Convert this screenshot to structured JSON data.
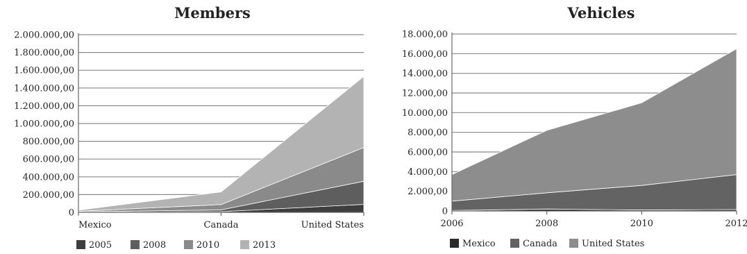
{
  "chart_data": [
    {
      "type": "area",
      "stacked": true,
      "title": "Members",
      "categories": [
        "Mexico",
        "Canada",
        "United States"
      ],
      "ylim": [
        0,
        2000000
      ],
      "yticks": [
        "0",
        "200.000,00",
        "400.000,00",
        "600.000,00",
        "800.000,00",
        "1.000.000,00",
        "1.200.000,00",
        "1.400.000,00",
        "1.600.000,00",
        "1.800.000,00",
        "2.000.000,00"
      ],
      "grid": true,
      "legend_position": "bottom-left",
      "series": [
        {
          "name": "2005",
          "color": "#3d3d3d",
          "values": [
            2000,
            8000,
            90000
          ]
        },
        {
          "name": "2008",
          "color": "#5e5e5e",
          "values": [
            4000,
            20000,
            260000
          ]
        },
        {
          "name": "2010",
          "color": "#8a8a8a",
          "values": [
            6000,
            60000,
            380000
          ]
        },
        {
          "name": "2013",
          "color": "#b3b3b3",
          "values": [
            12000,
            142000,
            800000
          ]
        }
      ]
    },
    {
      "type": "area",
      "stacked": true,
      "title": "Vehicles",
      "categories": [
        "2006",
        "2008",
        "2010",
        "2012"
      ],
      "ylim": [
        0,
        18000
      ],
      "yticks": [
        "0",
        "2.000,00",
        "4.000,00",
        "6.000,00",
        "8.000,00",
        "10.000,00",
        "12.000,00",
        "14.000,00",
        "16.000,00",
        "18.000,00"
      ],
      "grid": true,
      "legend_position": "bottom-left",
      "series": [
        {
          "name": "Mexico",
          "color": "#2a2a2a",
          "values": [
            50,
            200,
            100,
            150
          ]
        },
        {
          "name": "Canada",
          "color": "#636363",
          "values": [
            950,
            1650,
            2500,
            3550
          ]
        },
        {
          "name": "United States",
          "color": "#8d8d8d",
          "values": [
            2700,
            6350,
            8400,
            12800
          ]
        }
      ]
    }
  ]
}
